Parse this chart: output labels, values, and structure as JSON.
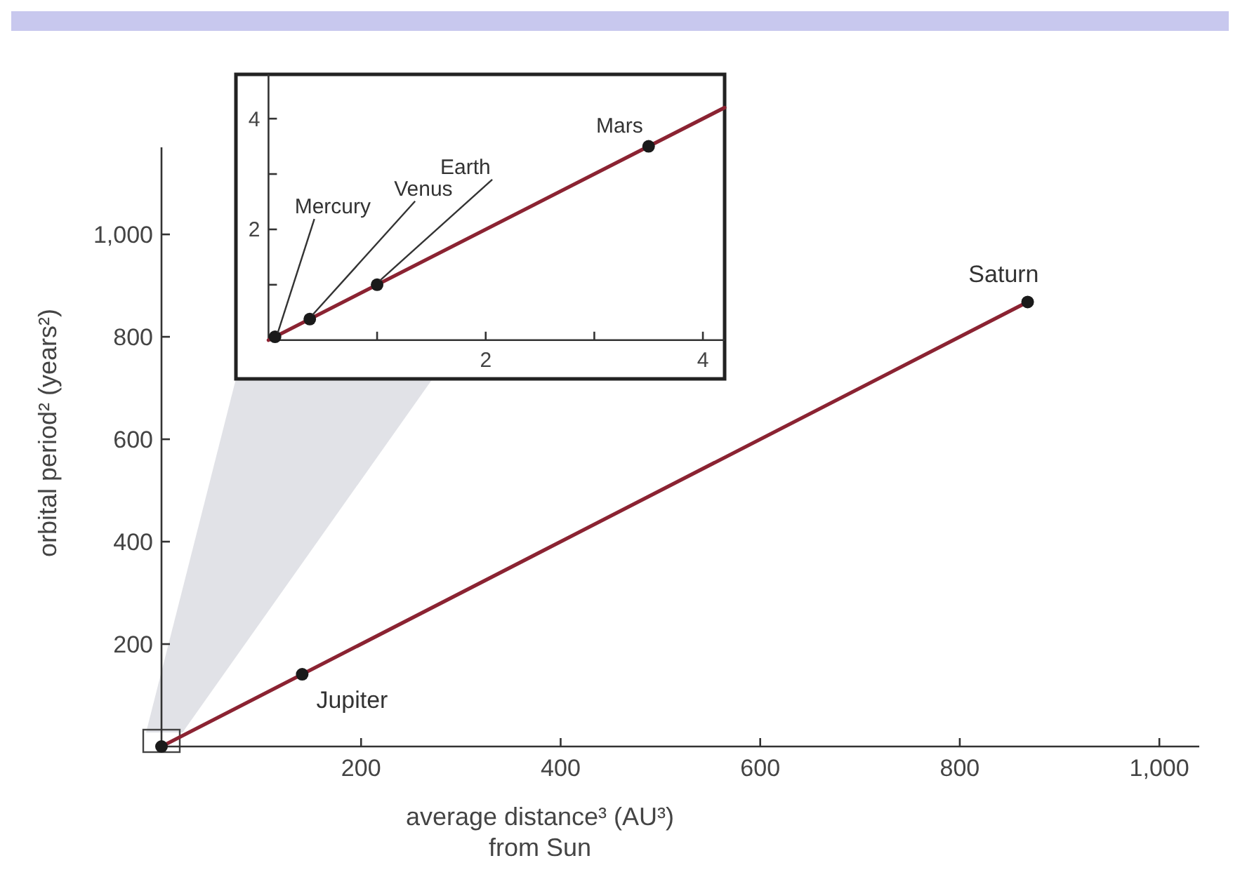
{
  "chart_data": [
    {
      "type": "scatter",
      "xlabel": "average distance³ (AU³)\nfrom Sun",
      "ylabel": "orbital period² (years²)",
      "xlim": [
        0,
        1040
      ],
      "ylim": [
        0,
        1170
      ],
      "xticks": [
        200,
        400,
        600,
        800,
        {
          "value": 1000,
          "label": "1,000"
        }
      ],
      "yticks": [
        200,
        400,
        600,
        800,
        {
          "value": 1000,
          "label": "1,000"
        }
      ],
      "marker": "circle",
      "series": [
        {
          "type": "line",
          "marker": "none",
          "color": "#8b2332",
          "x": [
            0,
            868
          ],
          "values": [
            0,
            868
          ]
        },
        {
          "color": "#1a1a1a",
          "x": [
            0
          ],
          "values": [
            0
          ]
        },
        {
          "name": "Jupiter",
          "color": "#1a1a1a",
          "x": [
            141
          ],
          "values": [
            141
          ]
        },
        {
          "name": "Saturn",
          "color": "#1a1a1a",
          "x": [
            868
          ],
          "values": [
            868
          ]
        }
      ]
    },
    {
      "type": "scatter",
      "xlim": [
        -0.3,
        4.2
      ],
      "ylim": [
        -0.7,
        4.8
      ],
      "xticks": [
        {
          "value": 1,
          "label": null
        },
        2,
        {
          "value": 3,
          "label": null
        },
        4
      ],
      "yticks": [
        {
          "value": 1,
          "label": null
        },
        2,
        {
          "value": 3,
          "label": null
        },
        4
      ],
      "marker": "circle",
      "series": [
        {
          "type": "line",
          "marker": "none",
          "color": "#8b2332",
          "x": [
            0,
            4.2
          ],
          "values": [
            0,
            4.2
          ]
        },
        {
          "name": "Mercury",
          "color": "#1a1a1a",
          "x": [
            0.06
          ],
          "values": [
            0.06
          ]
        },
        {
          "name": "Venus",
          "color": "#1a1a1a",
          "x": [
            0.38
          ],
          "values": [
            0.38
          ]
        },
        {
          "name": "Earth",
          "color": "#1a1a1a",
          "x": [
            1
          ],
          "values": [
            1
          ]
        },
        {
          "name": "Mars",
          "color": "#1a1a1a",
          "x": [
            3.5
          ],
          "values": [
            3.5
          ]
        }
      ]
    }
  ]
}
